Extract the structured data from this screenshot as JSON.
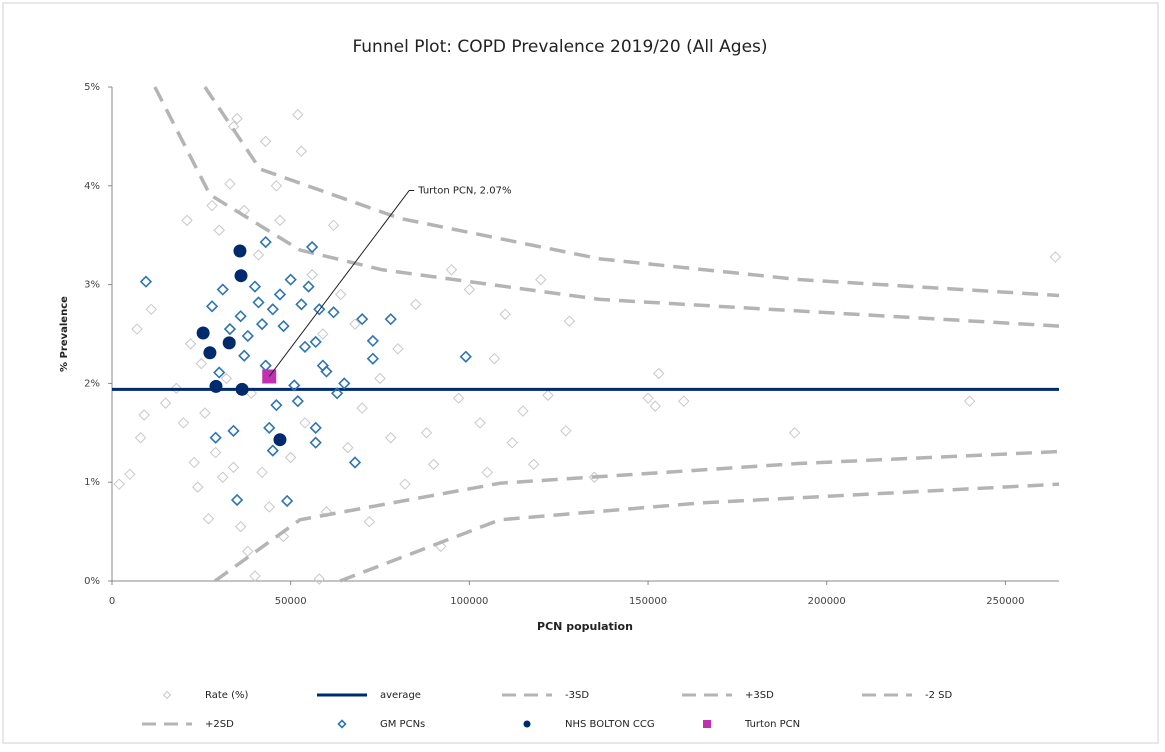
{
  "chart_data": {
    "type": "scatter",
    "title": "Funnel Plot: COPD Prevalence 2019/20 (All Ages)",
    "x_label": "PCN population",
    "y_label": "% Prevalence",
    "xlim": [
      0,
      265000
    ],
    "xticks": [
      0,
      50000,
      100000,
      150000,
      200000,
      250000
    ],
    "ylim": [
      0,
      5
    ],
    "yticks": [
      {
        "value": 0,
        "label": "0%"
      },
      {
        "value": 1,
        "label": "1%"
      },
      {
        "value": 2,
        "label": "2%"
      },
      {
        "value": 3,
        "label": "3%"
      },
      {
        "value": 4,
        "label": "4%"
      },
      {
        "value": 5,
        "label": "5%"
      }
    ],
    "series": [
      {
        "name": "Rate (%)",
        "marker": "open-diamond",
        "color": "#c8c8c8",
        "x": [
          2000,
          5000,
          7000,
          8000,
          9000,
          11000,
          15000,
          18000,
          20000,
          21000,
          22000,
          23000,
          24000,
          25000,
          26000,
          27000,
          28000,
          29000,
          30000,
          31000,
          32000,
          33000,
          34000,
          34000,
          35000,
          36000,
          37000,
          38000,
          39000,
          40000,
          41000,
          42000,
          43000,
          44000,
          46000,
          47000,
          48000,
          50000,
          52000,
          53000,
          54000,
          56000,
          58000,
          59000,
          60000,
          62000,
          64000,
          66000,
          68000,
          70000,
          72000,
          75000,
          78000,
          80000,
          82000,
          85000,
          88000,
          90000,
          92000,
          95000,
          97000,
          100000,
          103000,
          105000,
          107000,
          110000,
          112000,
          115000,
          118000,
          120000,
          122000,
          127000,
          128000,
          135000,
          150000,
          152000,
          153000,
          160000,
          191000,
          240000,
          264000
        ],
        "values": [
          0.98,
          1.08,
          2.55,
          1.45,
          1.68,
          2.75,
          1.8,
          1.95,
          1.6,
          3.65,
          2.4,
          1.2,
          0.95,
          2.2,
          1.7,
          0.63,
          3.8,
          1.3,
          3.55,
          1.05,
          2.05,
          4.02,
          4.6,
          1.15,
          4.68,
          0.55,
          3.75,
          0.3,
          1.9,
          0.05,
          3.3,
          1.1,
          4.45,
          0.75,
          4.0,
          3.65,
          0.45,
          1.25,
          4.72,
          4.35,
          1.6,
          3.1,
          0.02,
          2.5,
          0.7,
          3.6,
          2.9,
          1.35,
          2.6,
          1.75,
          0.6,
          2.05,
          1.45,
          2.35,
          0.98,
          2.8,
          1.5,
          1.18,
          0.35,
          3.15,
          1.85,
          2.95,
          1.6,
          1.1,
          2.25,
          2.7,
          1.4,
          1.72,
          1.18,
          3.05,
          1.88,
          1.52,
          2.63,
          1.05,
          1.85,
          1.77,
          2.1,
          1.82,
          1.5,
          1.82,
          3.28
        ]
      },
      {
        "name": "average",
        "marker": "line",
        "color": "#002a6e",
        "x": [
          0,
          265000
        ],
        "values": [
          1.94,
          1.94
        ]
      },
      {
        "name": "-3SD",
        "marker": "dash",
        "color": "#b4b4b4",
        "x": [
          63800,
          108600,
          164600,
          265000
        ],
        "values": [
          0,
          0.62,
          0.79,
          0.98
        ]
      },
      {
        "name": "+3SD",
        "marker": "dash",
        "color": "#b4b4b4",
        "x": [
          26000,
          41400,
          80600,
          136600,
          192600,
          265000
        ],
        "values": [
          5.0,
          4.17,
          3.67,
          3.26,
          3.05,
          2.89
        ]
      },
      {
        "name": "-2 SD",
        "marker": "dash",
        "color": "#b4b4b4",
        "x": [
          28800,
          52600,
          108600,
          192600,
          265000
        ],
        "values": [
          0,
          0.62,
          0.99,
          1.19,
          1.31
        ]
      },
      {
        "name": "+2SD",
        "marker": "dash",
        "color": "#b4b4b4",
        "x": [
          12000,
          27400,
          52600,
          75600,
          136600,
          265000
        ],
        "values": [
          5.0,
          3.91,
          3.35,
          3.15,
          2.85,
          2.58
        ]
      },
      {
        "name": "GM PCNs",
        "marker": "open-diamond",
        "color": "#2e75b6",
        "x": [
          9500,
          28000,
          30000,
          29000,
          31000,
          33000,
          34000,
          35000,
          36000,
          37000,
          38000,
          40000,
          41000,
          42000,
          43000,
          43000,
          44000,
          45000,
          45000,
          46000,
          47000,
          48000,
          49000,
          50000,
          51000,
          52000,
          53000,
          54000,
          55000,
          56000,
          57000,
          57000,
          57000,
          58000,
          59000,
          60000,
          62000,
          63000,
          65000,
          68000,
          70000,
          73000,
          73000,
          78000,
          99000
        ],
        "values": [
          3.03,
          2.78,
          2.11,
          1.45,
          2.95,
          2.55,
          1.52,
          0.82,
          2.68,
          2.28,
          2.48,
          2.98,
          2.82,
          2.6,
          3.43,
          2.18,
          1.55,
          2.75,
          1.32,
          1.78,
          2.9,
          2.58,
          0.81,
          3.05,
          1.98,
          1.82,
          2.8,
          2.37,
          2.98,
          3.38,
          2.42,
          1.55,
          1.4,
          2.75,
          2.18,
          2.12,
          2.72,
          1.9,
          2.0,
          1.2,
          2.65,
          2.43,
          2.25,
          2.65,
          2.27
        ]
      },
      {
        "name": "NHS BOLTON CCG",
        "marker": "circle",
        "color": "#002a6e",
        "x": [
          25500,
          27400,
          32800,
          35800,
          36100,
          29100,
          36400,
          47000
        ],
        "values": [
          2.51,
          2.31,
          2.41,
          3.34,
          3.09,
          1.97,
          1.94,
          1.43
        ]
      },
      {
        "name": "Turton PCN",
        "marker": "square",
        "color": "#c030b0",
        "x": [
          44000
        ],
        "values": [
          2.07
        ],
        "value_labels": [
          "Turton PCN, 2.07%"
        ]
      }
    ]
  }
}
